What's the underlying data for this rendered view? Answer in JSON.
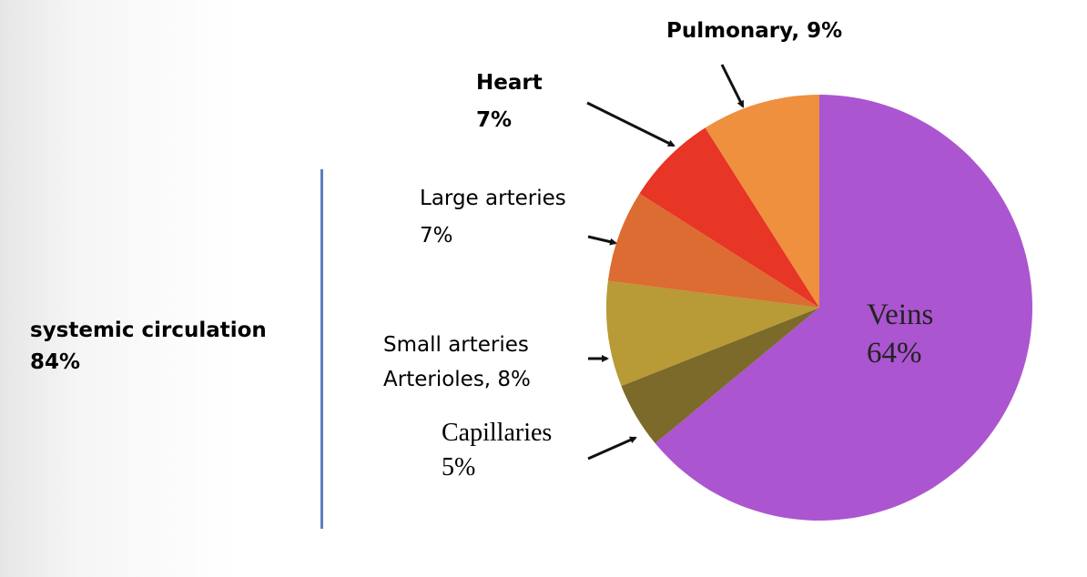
{
  "chart_data": {
    "type": "pie",
    "title": "",
    "start_angle_deg": 0,
    "direction": "clockwise",
    "categories": [
      "Veins",
      "Capillaries",
      "Small arteries Arterioles",
      "Large arteries",
      "Heart",
      "Pulmonary"
    ],
    "values": [
      64,
      5,
      8,
      7,
      7,
      9
    ],
    "colors": [
      "#ab55d0",
      "#7b6a2a",
      "#b89a36",
      "#dd6c32",
      "#e73526",
      "#ee903d"
    ],
    "labels": {
      "veins": {
        "line1": "Veins",
        "line2": "64%"
      },
      "capillaries": {
        "line1": "Capillaries",
        "line2": "5%"
      },
      "small_arteries": {
        "line1": "Small arteries",
        "line2": "Arterioles, 8%"
      },
      "large_arteries": {
        "line1": "Large arteries",
        "line2": "7%"
      },
      "heart": {
        "line1": "Heart",
        "line2": "7%"
      },
      "pulmonary": {
        "line1": "Pulmonary, 9%"
      }
    },
    "annotations": [
      {
        "text": "systemic circulation",
        "value": "84%"
      }
    ],
    "center": [
      900,
      338
    ],
    "radius": 234
  },
  "side_annotation": {
    "line1": "systemic circulation",
    "line2": "84%",
    "bracket_color": "#5b7fbf"
  },
  "arrow_color": "#111111"
}
